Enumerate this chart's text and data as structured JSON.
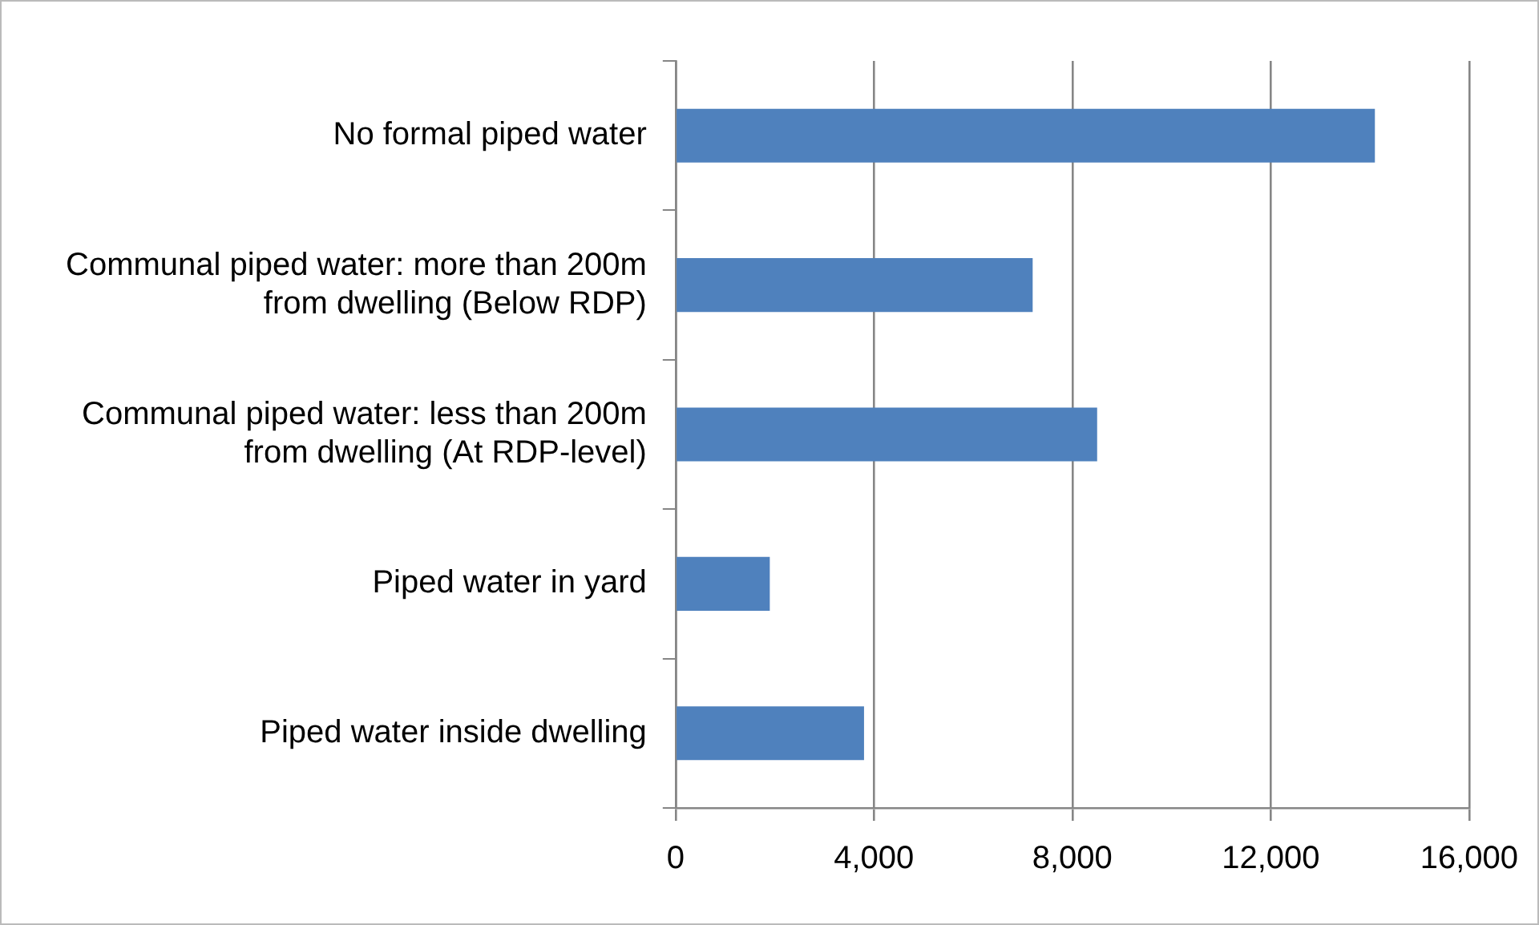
{
  "chart_data": {
    "type": "bar",
    "orientation": "horizontal",
    "categories": [
      "No formal piped water",
      "Communal piped water: more than 200m from dwelling (Below RDP)",
      "Communal piped water: less than 200m from dwelling (At RDP-level)",
      "Piped water in yard",
      "Piped water inside dwelling"
    ],
    "values": [
      14100,
      7200,
      8500,
      1900,
      3800
    ],
    "color": "#4f81bd",
    "xlim": [
      0,
      16000
    ],
    "xticks": [
      {
        "value": 0,
        "label": "0"
      },
      {
        "value": 4000,
        "label": "4,000"
      },
      {
        "value": 8000,
        "label": "8,000"
      },
      {
        "value": 12000,
        "label": "12,000"
      },
      {
        "value": 16000,
        "label": "16,000"
      }
    ],
    "grid": "x",
    "legend": false
  }
}
